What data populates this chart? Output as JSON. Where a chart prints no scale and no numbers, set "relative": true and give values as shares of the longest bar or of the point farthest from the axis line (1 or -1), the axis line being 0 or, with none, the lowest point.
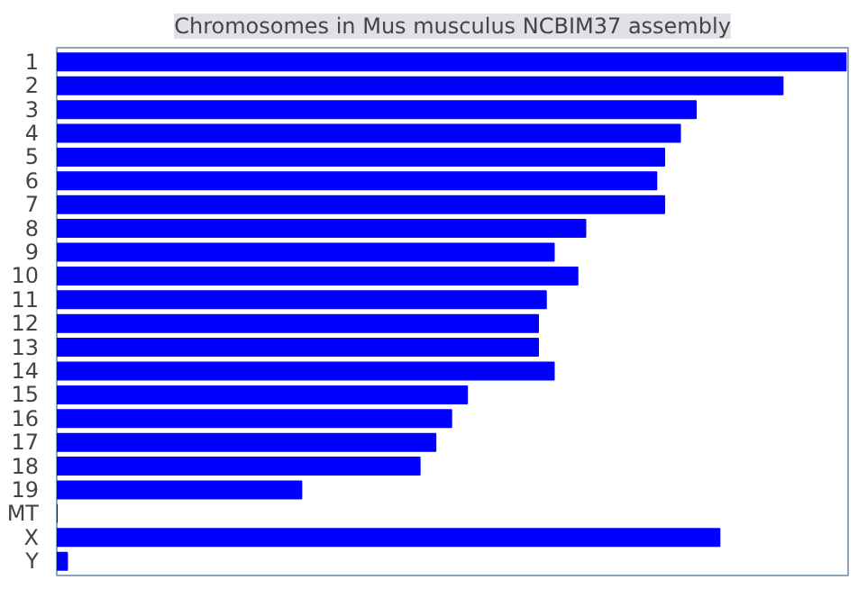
{
  "chart_data": {
    "type": "bar",
    "title": "Chromosomes in Mus musculus NCBIM37 assembly",
    "orientation": "horizontal",
    "relative": true,
    "color": "#0000ff",
    "categories": [
      "1",
      "2",
      "3",
      "4",
      "5",
      "6",
      "7",
      "8",
      "9",
      "10",
      "11",
      "12",
      "13",
      "14",
      "15",
      "16",
      "17",
      "18",
      "19",
      "MT",
      "X",
      "Y"
    ],
    "values": [
      1,
      0.92,
      0.81,
      0.79,
      0.77,
      0.76,
      0.77,
      0.67,
      0.63,
      0.66,
      0.62,
      0.61,
      0.61,
      0.63,
      0.52,
      0.5,
      0.48,
      0.46,
      0.31,
      0,
      0.84,
      0.013
    ],
    "grid": false
  }
}
